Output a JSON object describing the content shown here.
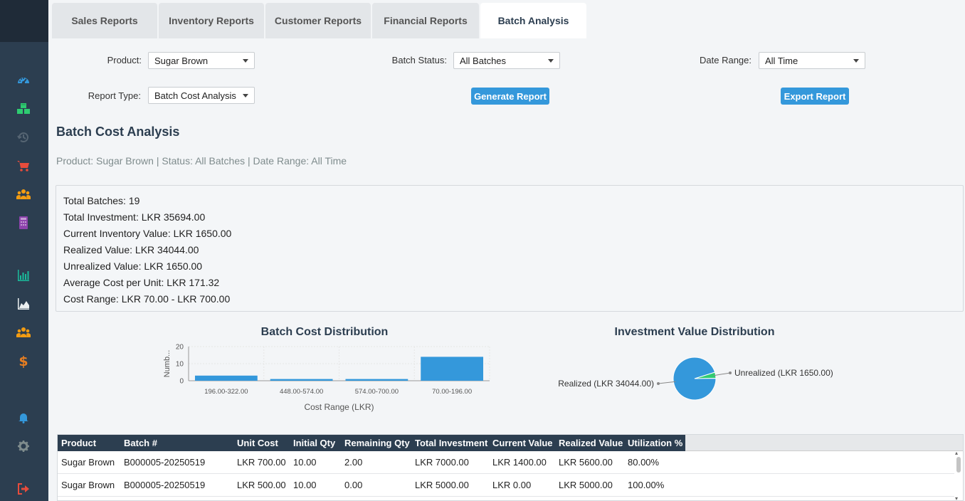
{
  "tabs": [
    "Sales Reports",
    "Inventory Reports",
    "Customer Reports",
    "Financial Reports",
    "Batch Analysis"
  ],
  "filters": {
    "product_label": "Product:",
    "product_value": "Sugar Brown",
    "batch_status_label": "Batch Status:",
    "batch_status_value": "All Batches",
    "date_range_label": "Date Range:",
    "date_range_value": "All Time",
    "report_type_label": "Report Type:",
    "report_type_value": "Batch Cost Analysis",
    "generate_label": "Generate Report",
    "export_label": "Export Report"
  },
  "report": {
    "title": "Batch Cost Analysis",
    "subtitle": "Product: Sugar Brown | Status: All Batches | Date Range: All Time"
  },
  "summary": [
    "Total Batches: 19",
    "Total Investment: LKR 35694.00",
    "Current Inventory Value: LKR 1650.00",
    "Realized Value: LKR 34044.00",
    "Unrealized Value: LKR 1650.00",
    "Average Cost per Unit: LKR 171.32",
    "Cost Range: LKR 70.00 - LKR 700.00"
  ],
  "chart_data": [
    {
      "type": "bar",
      "title": "Batch Cost Distribution",
      "categories": [
        "196.00-322.00",
        "448.00-574.00",
        "574.00-700.00",
        "70.00-196.00"
      ],
      "values": [
        3,
        1,
        1,
        14
      ],
      "xlabel": "Cost Range (LKR)",
      "ylabel": "Numb...",
      "yticks": [
        "0",
        "10",
        "20"
      ],
      "ylim": [
        0,
        20
      ],
      "color": "#3498db"
    },
    {
      "type": "pie",
      "title": "Investment Value Distribution",
      "labels": [
        "Realized (LKR 34044.00)",
        "Unrealized (LKR 1650.00)"
      ],
      "values": [
        34044.0,
        1650.0
      ],
      "colors": [
        "#3498db",
        "#2ecc71"
      ]
    }
  ],
  "table": {
    "columns": [
      "Product",
      "Batch #",
      "Unit Cost",
      "Initial Qty",
      "Remaining Qty",
      "Total Investment",
      "Current Value",
      "Realized Value",
      "Utilization %"
    ],
    "rows": [
      [
        "Sugar Brown",
        "B000005-20250519",
        "LKR 700.00",
        "10.00",
        "2.00",
        "LKR 7000.00",
        "LKR 1400.00",
        "LKR 5600.00",
        "80.00%"
      ],
      [
        "Sugar Brown",
        "B000005-20250519",
        "LKR 500.00",
        "10.00",
        "0.00",
        "LKR 5000.00",
        "LKR 0.00",
        "LKR 5000.00",
        "100.00%"
      ]
    ]
  },
  "sidebar_icons": [
    "dashboard-icon",
    "cubes-icon",
    "history-icon",
    "cart-icon",
    "users-icon",
    "calculator-icon",
    "bar-chart-icon",
    "area-chart-icon",
    "users-icon",
    "dollar-icon",
    "bell-icon",
    "gear-icon",
    "sign-out-icon"
  ]
}
